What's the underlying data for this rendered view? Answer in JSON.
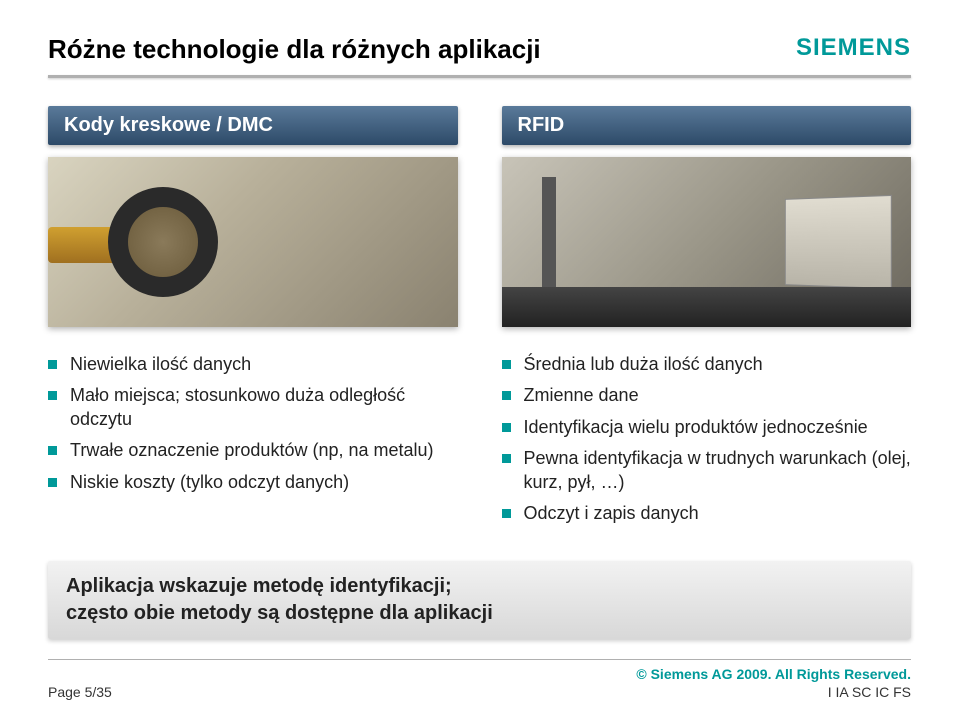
{
  "header": {
    "title": "Różne technologie dla różnych aplikacji",
    "brand": "SIEMENS"
  },
  "columns": {
    "left": {
      "header": "Kody kreskowe / DMC",
      "bullets": [
        "Niewielka ilość danych",
        "Mało miejsca; stosunkowo duża odległość odczytu",
        "Trwałe oznaczenie produktów (np, na metalu)",
        "Niskie koszty (tylko odczyt danych)"
      ]
    },
    "right": {
      "header": "RFID",
      "bullets": [
        "Średnia lub duża ilość danych",
        "Zmienne dane",
        "Identyfikacja wielu produktów jednocześnie",
        "Pewna identyfikacja w trudnych warunkach (olej, kurz, pył, …)",
        "Odczyt i zapis danych"
      ]
    }
  },
  "conclusion": {
    "line1": "Aplikacja wskazuje metodę identyfikacji;",
    "line2": "często obie metody są dostępne dla aplikacji"
  },
  "footer": {
    "page": "Page 5/35",
    "copyright": "© Siemens AG 2009. All Rights Reserved.",
    "dept": "I IA SC IC FS"
  },
  "colors": {
    "accent": "#009999",
    "col_header_bg_top": "#5a7a9a",
    "col_header_bg_bottom": "#2d4a68",
    "divider": "#b0b0b0"
  }
}
